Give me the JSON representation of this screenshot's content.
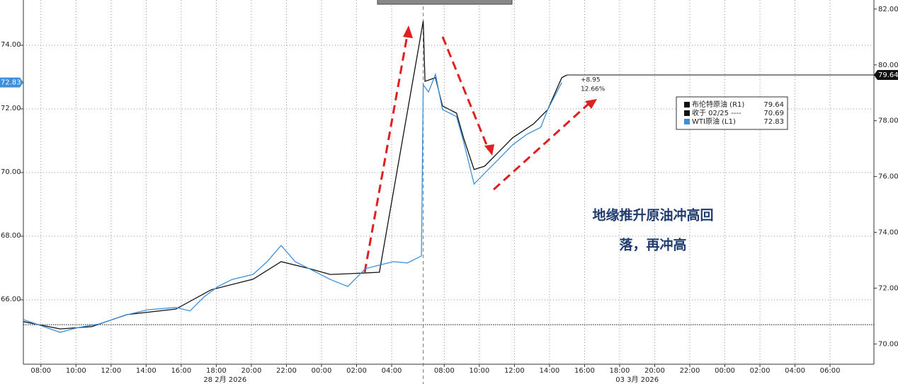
{
  "chart_data": {
    "type": "line",
    "series": [
      {
        "name": "布伦特原油 (R1)",
        "color": "#111111",
        "axis": "y2",
        "x": [
          7.0,
          9.1,
          10.9,
          12.9,
          15.7,
          17.7,
          20.1,
          21.7,
          23.3,
          24.5,
          25.7,
          27.3,
          29.8,
          29.9,
          30.5,
          30.9,
          31.7,
          32.1,
          32.7,
          33.3,
          34.1,
          34.9,
          36.1,
          36.9,
          37.7,
          38.0
        ],
        "values": [
          70.8,
          70.54,
          70.62,
          71.05,
          71.25,
          71.94,
          72.32,
          72.95,
          72.7,
          72.49,
          72.52,
          72.57,
          81.57,
          79.41,
          79.54,
          78.53,
          78.27,
          77.39,
          76.25,
          76.37,
          76.88,
          77.39,
          77.89,
          78.4,
          79.54,
          79.64
        ]
      },
      {
        "name": "WTI原油 (L1)",
        "color": "#3b8fdc",
        "x": [
          7.0,
          9.1,
          10.1,
          11.3,
          12.9,
          14.1,
          15.7,
          16.5,
          17.3,
          18.1,
          18.9,
          20.1,
          20.9,
          21.7,
          22.5,
          23.3,
          24.5,
          25.5,
          26.5,
          27.3,
          28.1,
          28.9,
          29.7,
          29.8,
          30.1,
          30.5,
          30.9,
          31.7,
          32.1,
          32.7,
          33.3,
          34.1,
          34.9,
          35.7,
          36.5,
          36.9,
          37.7
        ],
        "values": [
          65.38,
          64.98,
          65.13,
          65.24,
          65.53,
          65.69,
          65.76,
          65.65,
          66.09,
          66.42,
          66.64,
          66.8,
          67.2,
          67.71,
          67.2,
          66.98,
          66.64,
          66.42,
          66.98,
          67.09,
          67.2,
          67.16,
          67.38,
          72.76,
          72.53,
          73.09,
          71.98,
          71.76,
          70.98,
          69.64,
          69.98,
          70.42,
          70.87,
          71.2,
          71.42,
          71.98,
          72.83
        ]
      }
    ],
    "reference_lines": [
      {
        "name": "收于 02/25 ----",
        "value": 70.69,
        "axis": "y2"
      }
    ],
    "annotations": [
      "+8.95",
      "12.66%",
      "地缘推升原油冲高回",
      "落，再冲高"
    ],
    "xlim": [
      7,
      55.5
    ],
    "xticks": [
      {
        "value": 8,
        "label": "08:00"
      },
      {
        "value": 10,
        "label": "10:00"
      },
      {
        "value": 12,
        "label": "12:00"
      },
      {
        "value": 14,
        "label": "14:00"
      },
      {
        "value": 16,
        "label": "16:00"
      },
      {
        "value": 18,
        "label": "18:00"
      },
      {
        "value": 20,
        "label": "20:00"
      },
      {
        "value": 22,
        "label": "22:00"
      },
      {
        "value": 24,
        "label": "00:00"
      },
      {
        "value": 26,
        "label": "02:00"
      },
      {
        "value": 28,
        "label": "04:00"
      },
      {
        "value": 31,
        "label": "08:00"
      },
      {
        "value": 33,
        "label": "10:00"
      },
      {
        "value": 35,
        "label": "12:00"
      },
      {
        "value": 37,
        "label": "14:00"
      },
      {
        "value": 39,
        "label": "16:00"
      },
      {
        "value": 41,
        "label": "18:00"
      },
      {
        "value": 43,
        "label": "20:00"
      },
      {
        "value": 45,
        "label": "22:00"
      },
      {
        "value": 47,
        "label": "00:00"
      },
      {
        "value": 49,
        "label": "02:00"
      },
      {
        "value": 51,
        "label": "04:00"
      },
      {
        "value": 53,
        "label": "06:00"
      }
    ],
    "day_labels": [
      {
        "value": 18.5,
        "label": "28 2月 2026"
      },
      {
        "value": 42,
        "label": "03 3月 2026"
      }
    ],
    "day_separator": 29.8,
    "ylim": [
      64,
      75.4
    ],
    "yticks": [
      {
        "value": 66,
        "label": "66.00"
      },
      {
        "value": 68,
        "label": "68.00"
      },
      {
        "value": 70,
        "label": "70.00"
      },
      {
        "value": 72,
        "label": "72.00"
      },
      {
        "value": 74,
        "label": "74.00"
      }
    ],
    "y2lim": [
      69.3,
      82.3
    ],
    "y2ticks": [
      {
        "value": 70,
        "label": "70.00"
      },
      {
        "value": 72,
        "label": "72.00"
      },
      {
        "value": 74,
        "label": "74.00"
      },
      {
        "value": 76,
        "label": "76.00"
      },
      {
        "value": 78,
        "label": "78.00"
      },
      {
        "value": 80,
        "label": "80.00"
      },
      {
        "value": 82,
        "label": "82.00"
      }
    ],
    "grid": true
  }
}
